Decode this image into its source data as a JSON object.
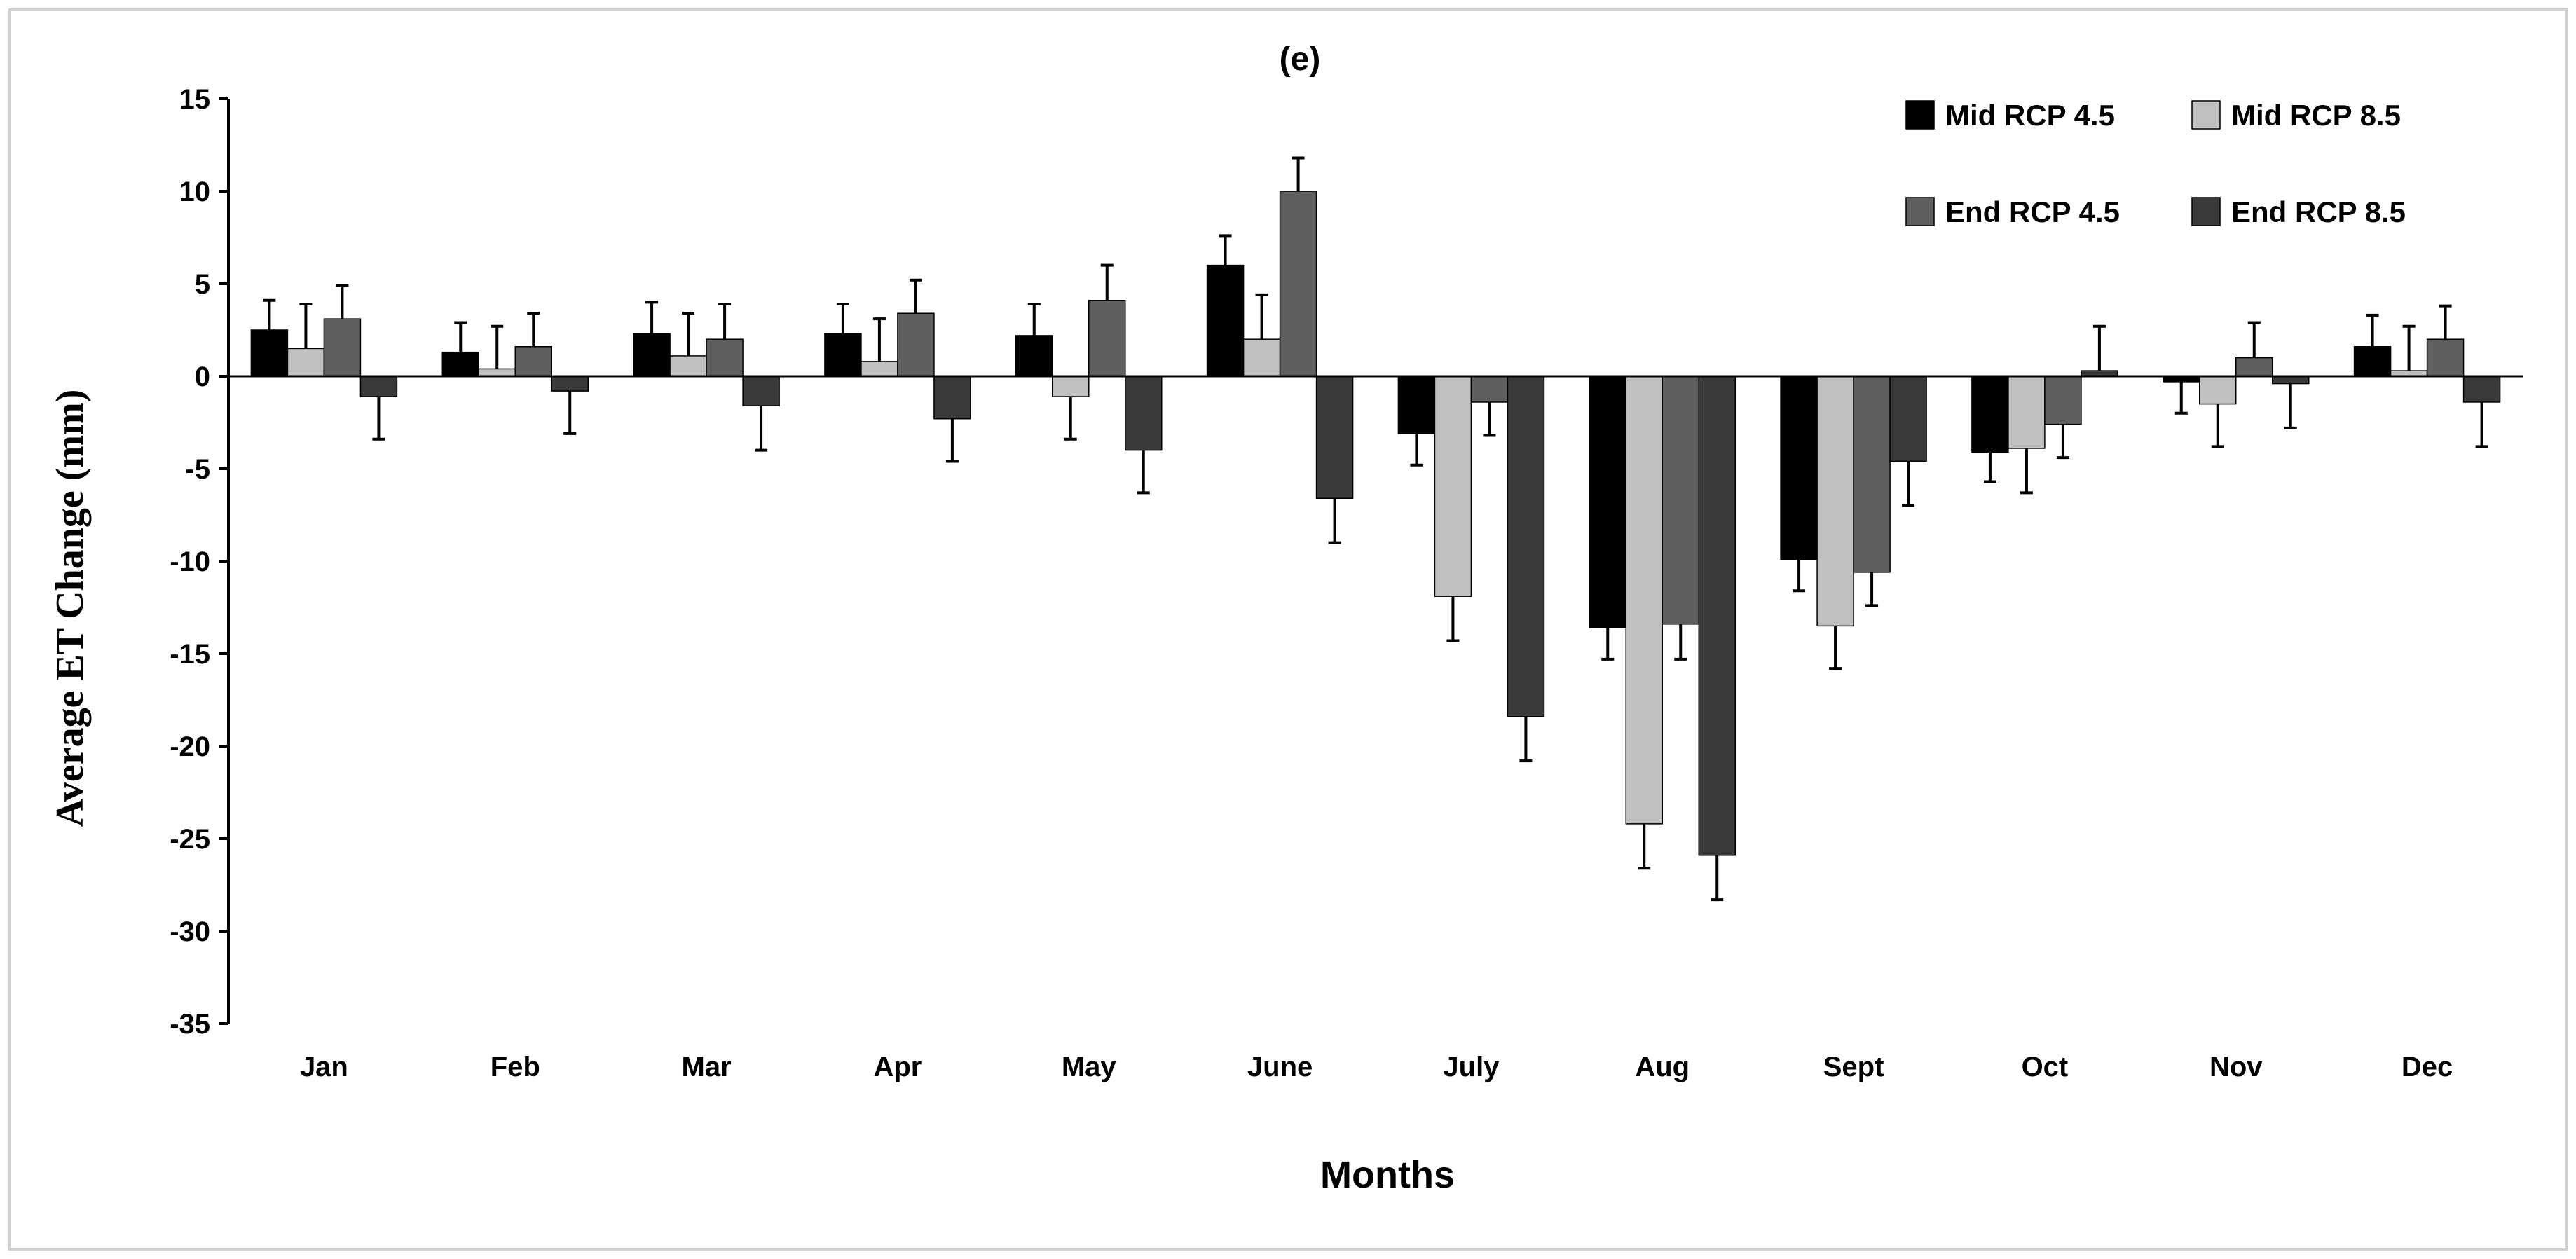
{
  "chart_data": {
    "type": "bar",
    "title": "(e)",
    "xlabel": "Months",
    "ylabel": "Average ET Change (mm)",
    "ylim": [
      -35,
      15
    ],
    "yticks": [
      15,
      10,
      5,
      0,
      -5,
      -10,
      -15,
      -20,
      -25,
      -30,
      -35
    ],
    "categories": [
      "Jan",
      "Feb",
      "Mar",
      "Apr",
      "May",
      "June",
      "July",
      "Aug",
      "Sept",
      "Oct",
      "Nov",
      "Dec"
    ],
    "legend_position": "top-right",
    "grid": false,
    "series": [
      {
        "name": "Mid RCP 4.5",
        "color": "#000000",
        "values": [
          2.5,
          1.3,
          2.3,
          2.3,
          2.2,
          6.0,
          -3.1,
          -13.6,
          -9.9,
          -4.1,
          -0.3,
          1.6
        ],
        "errors": [
          1.6,
          1.6,
          1.7,
          1.6,
          1.7,
          1.6,
          1.7,
          1.7,
          1.7,
          1.6,
          1.7,
          1.7
        ]
      },
      {
        "name": "Mid RCP 8.5",
        "color": "#c0c0c0",
        "values": [
          1.5,
          0.4,
          1.1,
          0.8,
          -1.1,
          2.0,
          -11.9,
          -24.2,
          -13.5,
          -3.9,
          -1.5,
          0.3
        ],
        "errors": [
          2.4,
          2.3,
          2.3,
          2.3,
          2.3,
          2.4,
          2.4,
          2.4,
          2.3,
          2.4,
          2.3,
          2.4
        ]
      },
      {
        "name": "End RCP 4.5",
        "color": "#5f5f5f",
        "values": [
          3.1,
          1.6,
          2.0,
          3.4,
          4.1,
          10.0,
          -1.4,
          -13.4,
          -10.6,
          -2.6,
          1.0,
          2.0
        ],
        "errors": [
          1.8,
          1.8,
          1.9,
          1.8,
          1.9,
          1.8,
          1.8,
          1.9,
          1.8,
          1.8,
          1.9,
          1.8
        ]
      },
      {
        "name": "End RCP 8.5",
        "color": "#3a3a3a",
        "values": [
          -1.1,
          -0.8,
          -1.6,
          -2.3,
          -4.0,
          -6.6,
          -18.4,
          -25.9,
          -4.6,
          0.3,
          -0.4,
          -1.4
        ],
        "errors": [
          2.3,
          2.3,
          2.4,
          2.3,
          2.3,
          2.4,
          2.4,
          2.4,
          2.4,
          2.4,
          2.4,
          2.4
        ]
      }
    ]
  }
}
